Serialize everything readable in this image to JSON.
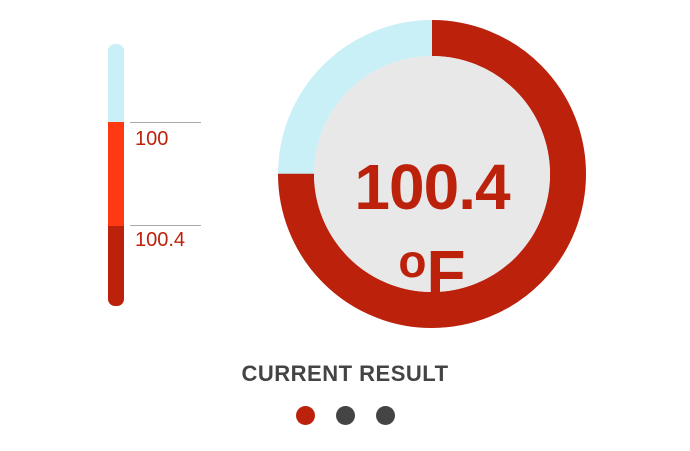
{
  "colors": {
    "normal_range": "#c8f0f6",
    "elevated_range": "#ff3a12",
    "fever_range": "#bc220b",
    "gauge_track": "#c8f0f6",
    "gauge_fill": "#bc220b",
    "gauge_center_bg": "#e8e8e8",
    "value_text": "#bc220b",
    "tick_label_text": "#bc220b",
    "title_text": "#444444",
    "dot_active": "#bc220b",
    "dot_inactive": "#444444"
  },
  "thermometer": {
    "markers": [
      {
        "label": "100"
      },
      {
        "label": "100.4"
      }
    ]
  },
  "gauge": {
    "value": "100.4",
    "unit_degree": "o",
    "unit_letter": "F",
    "fill_fraction": 0.75
  },
  "result": {
    "title": "CURRENT RESULT"
  },
  "carousel": {
    "page_count": 3,
    "active_index": 0
  }
}
